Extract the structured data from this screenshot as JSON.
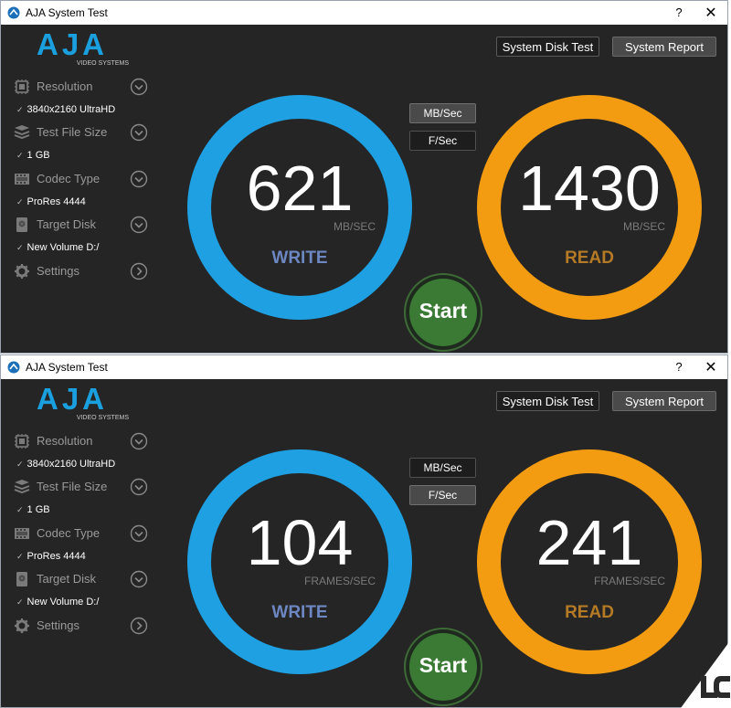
{
  "windows": [
    {
      "title": "AJA System Test",
      "help": "?",
      "close": "✕",
      "logo_text": "AJA",
      "logo_sub": "VIDEO SYSTEMS",
      "buttons": {
        "disk_test": "System Disk Test",
        "report": "System Report"
      },
      "sidebar": [
        {
          "label": "Resolution",
          "value": "3840x2160 UltraHD"
        },
        {
          "label": "Test File Size",
          "value": "1 GB"
        },
        {
          "label": "Codec Type",
          "value": "ProRes 4444"
        },
        {
          "label": "Target Disk",
          "value": "New Volume D:/"
        },
        {
          "label": "Settings"
        }
      ],
      "units": {
        "mb": "MB/Sec",
        "fps": "F/Sec",
        "selected": "mb"
      },
      "write": {
        "value": "621",
        "unit": "MB/SEC",
        "label": "WRITE"
      },
      "read": {
        "value": "1430",
        "unit": "MB/SEC",
        "label": "READ"
      },
      "start": "Start"
    },
    {
      "title": "AJA System Test",
      "help": "?",
      "close": "✕",
      "logo_text": "AJA",
      "logo_sub": "VIDEO SYSTEMS",
      "buttons": {
        "disk_test": "System Disk Test",
        "report": "System Report"
      },
      "sidebar": [
        {
          "label": "Resolution",
          "value": "3840x2160 UltraHD"
        },
        {
          "label": "Test File Size",
          "value": "1 GB"
        },
        {
          "label": "Codec Type",
          "value": "ProRes 4444"
        },
        {
          "label": "Target Disk",
          "value": "New Volume D:/"
        },
        {
          "label": "Settings"
        }
      ],
      "units": {
        "mb": "MB/Sec",
        "fps": "F/Sec",
        "selected": "fps"
      },
      "write": {
        "value": "104",
        "unit": "FRAMES/SEC",
        "label": "WRITE"
      },
      "read": {
        "value": "241",
        "unit": "FRAMES/SEC",
        "label": "READ"
      },
      "start": "Start"
    }
  ],
  "colors": {
    "write": "#1ea0e2",
    "read": "#f39c12",
    "start": "#3a7a34",
    "logo": "#1aa0df"
  }
}
